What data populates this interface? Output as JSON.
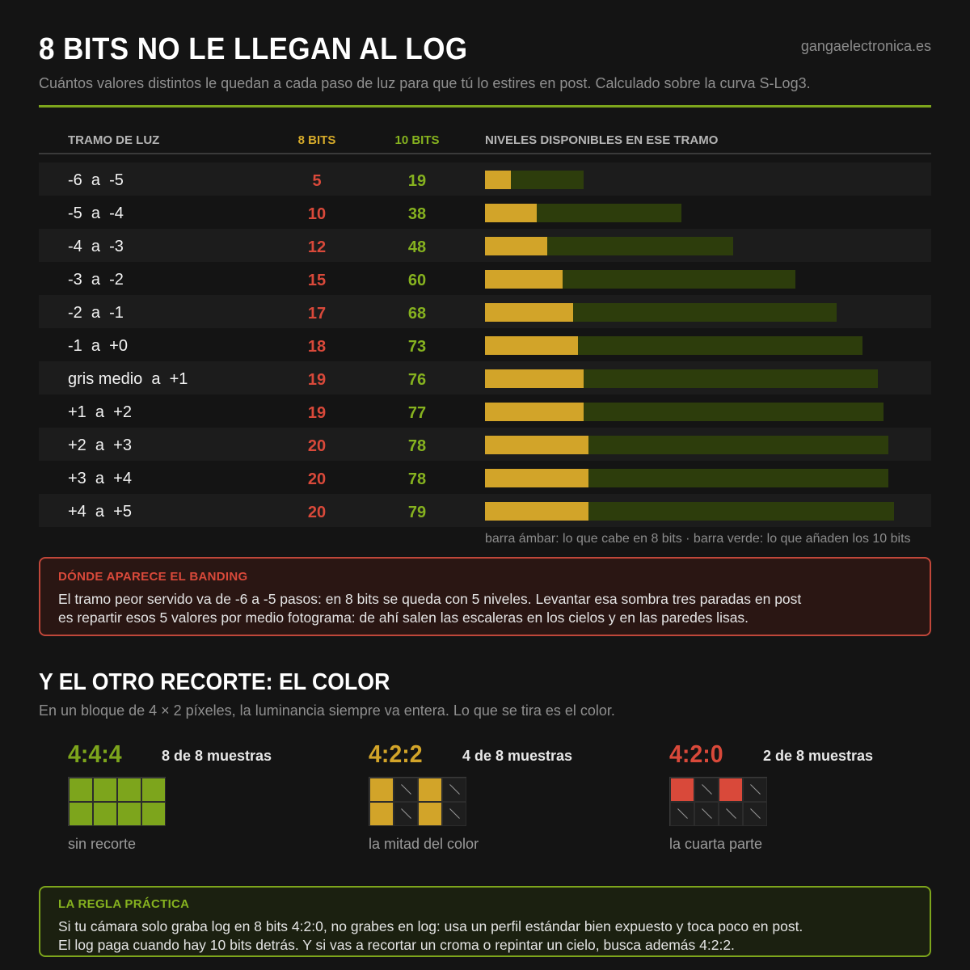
{
  "header": {
    "title": "8 BITS NO LE LLEGAN AL LOG",
    "site": "gangaelectronica.es",
    "subtitle": "Cuántos valores distintos le quedan a cada paso de luz para que tú lo estires en post. Calculado sobre la curva S-Log3."
  },
  "colors": {
    "amber": "#d2a429",
    "green": "#86b21f",
    "dark_green": "#2d3d0c",
    "red": "#d9493a"
  },
  "chart_data": {
    "type": "table",
    "columns": [
      "TRAMO DE LUZ",
      "8 BITS",
      "10 BITS",
      "NIVELES DISPONIBLES EN ESE TRAMO"
    ],
    "categories": [
      "-6  a  -5",
      "-5  a  -4",
      "-4  a  -3",
      "-3  a  -2",
      "-2  a  -1",
      "-1  a  +0",
      "gris medio  a  +1",
      "+1  a  +2",
      "+2  a  +3",
      "+3  a  +4",
      "+4  a  +5"
    ],
    "series": [
      {
        "name": "8 BITS",
        "values": [
          5,
          10,
          12,
          15,
          17,
          18,
          19,
          19,
          20,
          20,
          20
        ],
        "color": "#d2a429"
      },
      {
        "name": "10 BITS",
        "values": [
          19,
          38,
          48,
          60,
          68,
          73,
          76,
          77,
          78,
          78,
          79
        ],
        "color": "#2d3d0c"
      }
    ],
    "bar_scale_max": 80,
    "legend": "barra ámbar: lo que cabe en 8 bits   ·   barra verde: lo que añaden los 10 bits"
  },
  "banding": {
    "title": "DÓNDE APARECE EL BANDING",
    "line1": "El tramo peor servido va de -6 a -5 pasos: en 8 bits se queda con 5 niveles. Levantar esa sombra tres paradas en post",
    "line2": "es repartir esos 5 valores por medio fotograma: de ahí salen las escaleras en los cielos y en las paredes lisas."
  },
  "color_section": {
    "title": "Y EL OTRO RECORTE: EL COLOR",
    "subtitle": "En un bloque de 4 × 2 píxeles, la luminancia siempre va entera. Lo que se tira es el color.",
    "samples": [
      {
        "label": "4:4:4",
        "count": "8 de 8 muestras",
        "caption": "sin recorte",
        "color": "#7da51c",
        "filled": [
          1,
          1,
          1,
          1,
          1,
          1,
          1,
          1
        ]
      },
      {
        "label": "4:2:2",
        "count": "4 de 8 muestras",
        "caption": "la mitad del color",
        "color": "#d2a429",
        "filled": [
          1,
          0,
          1,
          0,
          1,
          0,
          1,
          0
        ]
      },
      {
        "label": "4:2:0",
        "count": "2 de 8 muestras",
        "caption": "la cuarta parte",
        "color": "#d9493a",
        "filled": [
          1,
          0,
          1,
          0,
          0,
          0,
          0,
          0
        ]
      }
    ]
  },
  "rule": {
    "title": "LA REGLA PRÁCTICA",
    "line1": "Si tu cámara solo graba log en 8 bits 4:2:0, no grabes en log: usa un perfil estándar bien expuesto y toca poco en post.",
    "line2": "El log paga cuando hay 10 bits detrás. Y si vas a recortar un croma o repintar un cielo, busca además 4:2:2."
  }
}
